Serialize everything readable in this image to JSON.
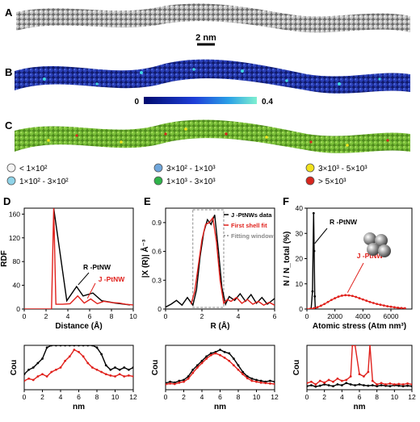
{
  "panels": {
    "A": "A",
    "B": "B",
    "C": "C",
    "D": "D",
    "E": "E",
    "F": "F"
  },
  "scale_bar": "2 nm",
  "colorbar": {
    "min": "0",
    "max": "0.4"
  },
  "legend_C": [
    {
      "label": "< 1×10²",
      "color": "#f4f4f4"
    },
    {
      "label": "1×10² - 3×10²",
      "color": "#8fd3e8"
    },
    {
      "label": "3×10² - 1×10³",
      "color": "#6fa6dc"
    },
    {
      "label": "1×10³ - 3×10³",
      "color": "#2fb34a"
    },
    {
      "label": "3×10³ - 5×10³",
      "color": "#f2e21c"
    },
    {
      "label": "> 5×10³",
      "color": "#d7261e"
    }
  ],
  "colors": {
    "black": "#000000",
    "red": "#e0201b",
    "grey": "#8a8a8a"
  },
  "chart_data": [
    {
      "id": "D",
      "type": "line",
      "xlabel": "Distance (Å)",
      "ylabel": "RDF",
      "xlim": [
        0,
        10
      ],
      "ylim": [
        0,
        170
      ],
      "xticks": [
        0,
        2,
        4,
        6,
        8,
        10
      ],
      "yticks": [
        0,
        40,
        80,
        120,
        160
      ],
      "annotations": [
        "R -PtNW",
        "J -PtNW"
      ],
      "series": [
        {
          "name": "R -PtNW",
          "color": "#000000",
          "x": [
            2.7,
            3.9,
            4.8,
            5.4,
            6.3,
            7.1,
            7.8,
            8.3,
            9.2,
            9.7
          ],
          "y": [
            175,
            14,
            38,
            22,
            27,
            14,
            12,
            10,
            8,
            7
          ]
        },
        {
          "name": "J -PtNW",
          "color": "#e0201b",
          "x": [
            0,
            2.5,
            2.7,
            2.9,
            3.5,
            4.2,
            4.9,
            5.5,
            6.1,
            6.7,
            7.3,
            8.0,
            8.7,
            9.3,
            10
          ],
          "y": [
            0,
            0,
            178,
            8,
            8,
            9,
            22,
            10,
            17,
            9,
            13,
            11,
            10,
            8,
            7
          ]
        }
      ]
    },
    {
      "id": "E",
      "type": "line",
      "xlabel": "R (Å)",
      "ylabel": "|X (R)| Å⁻³",
      "xlim": [
        0,
        6
      ],
      "ylim": [
        0,
        1.05
      ],
      "xticks": [
        0,
        2,
        4,
        6
      ],
      "yticks": [
        0.0,
        0.3,
        0.6,
        0.9
      ],
      "legend": [
        "J -PtNWs data",
        "First shell fit",
        "Fitting window"
      ],
      "series": [
        {
          "name": "J -PtNWs data",
          "color": "#000000",
          "x": [
            0,
            0.3,
            0.6,
            0.9,
            1.2,
            1.5,
            1.7,
            1.9,
            2.1,
            2.3,
            2.5,
            2.7,
            2.9,
            3.1,
            3.3,
            3.5,
            3.8,
            4.1,
            4.4,
            4.7,
            5.0,
            5.3,
            5.6,
            6.0
          ],
          "y": [
            0.02,
            0.05,
            0.09,
            0.04,
            0.12,
            0.04,
            0.2,
            0.55,
            0.8,
            0.93,
            0.88,
            0.98,
            0.62,
            0.22,
            0.05,
            0.13,
            0.09,
            0.16,
            0.08,
            0.15,
            0.06,
            0.12,
            0.05,
            0.11
          ]
        },
        {
          "name": "First shell fit",
          "color": "#e0201b",
          "x": [
            1.4,
            1.6,
            1.8,
            2.0,
            2.2,
            2.4,
            2.6,
            2.8,
            3.0,
            3.2,
            3.4,
            3.6,
            3.9,
            4.2,
            4.5,
            4.8,
            5.1,
            5.4,
            5.7,
            6.0
          ],
          "y": [
            0.05,
            0.18,
            0.45,
            0.72,
            0.88,
            0.9,
            0.95,
            0.7,
            0.3,
            0.06,
            0.1,
            0.08,
            0.12,
            0.06,
            0.1,
            0.05,
            0.08,
            0.04,
            0.07,
            0.04
          ]
        }
      ],
      "fitting_window": [
        1.5,
        3.2
      ]
    },
    {
      "id": "F",
      "type": "line",
      "xlabel": "Atomic stress (Atm nm³)",
      "ylabel": "N / N_total (%)",
      "xlim": [
        0,
        7500
      ],
      "ylim": [
        0,
        40
      ],
      "xticks": [
        0,
        2000,
        4000,
        6000
      ],
      "yticks": [
        0,
        10,
        20,
        30,
        40
      ],
      "annotations": [
        "R -PtNW",
        "J -PtNW"
      ],
      "series": [
        {
          "name": "R -PtNW",
          "color": "#000000",
          "x": [
            300,
            400,
            480,
            520,
            560,
            600
          ],
          "y": [
            0,
            7,
            38,
            23,
            5,
            0
          ]
        },
        {
          "name": "J -PtNW",
          "color": "#e0201b",
          "x": [
            0,
            250,
            500,
            750,
            1000,
            1250,
            1500,
            1750,
            2000,
            2250,
            2500,
            2750,
            3000,
            3250,
            3500,
            3750,
            4000,
            4250,
            4500,
            4750,
            5000,
            5250,
            5500,
            5750,
            6000,
            6250,
            6500,
            6750,
            7000
          ],
          "y": [
            0,
            0.1,
            0.3,
            0.7,
            1.3,
            2.0,
            2.8,
            3.6,
            4.3,
            4.9,
            5.3,
            5.5,
            5.4,
            5.2,
            4.8,
            4.3,
            3.8,
            3.3,
            2.8,
            2.4,
            2.0,
            1.7,
            1.4,
            1.1,
            0.9,
            0.7,
            0.5,
            0.4,
            0.3
          ]
        }
      ]
    },
    {
      "id": "D2",
      "type": "line",
      "xlabel": "nm",
      "ylabel": "Cou",
      "xlim": [
        0,
        12
      ],
      "ylim": [
        0,
        1
      ],
      "xticks": [
        0,
        2,
        4,
        6,
        8,
        10,
        12
      ],
      "series": [
        {
          "name": "",
          "color": "#000000",
          "x": [
            0,
            0.5,
            1,
            1.5,
            2,
            2.5,
            3,
            3.5,
            4,
            4.5,
            5,
            5.5,
            6,
            6.5,
            7,
            7.5,
            8,
            8.5,
            9,
            9.5,
            10,
            10.5,
            11,
            11.5,
            12
          ],
          "y": [
            0.35,
            0.45,
            0.5,
            0.6,
            0.7,
            0.95,
            1,
            1,
            1,
            1,
            1,
            1,
            1,
            1,
            1,
            1,
            0.95,
            0.8,
            0.55,
            0.45,
            0.5,
            0.45,
            0.5,
            0.45,
            0.5
          ]
        },
        {
          "name": "",
          "color": "#e0201b",
          "x": [
            0,
            0.5,
            1,
            1.5,
            2,
            2.5,
            3,
            3.5,
            4,
            4.5,
            5,
            5.5,
            6,
            6.5,
            7,
            7.5,
            8,
            8.5,
            9,
            9.5,
            10,
            10.5,
            11,
            11.5,
            12
          ],
          "y": [
            0.2,
            0.25,
            0.22,
            0.3,
            0.35,
            0.3,
            0.4,
            0.45,
            0.5,
            0.65,
            0.75,
            0.9,
            0.85,
            0.75,
            0.6,
            0.5,
            0.45,
            0.4,
            0.35,
            0.32,
            0.3,
            0.35,
            0.3,
            0.32,
            0.3
          ]
        }
      ]
    },
    {
      "id": "E2",
      "type": "line",
      "xlabel": "nm",
      "ylabel": "Cou",
      "xlim": [
        0,
        12
      ],
      "ylim": [
        0,
        1
      ],
      "xticks": [
        0,
        2,
        4,
        6,
        8,
        10,
        12
      ],
      "series": [
        {
          "name": "",
          "color": "#000000",
          "x": [
            0,
            0.5,
            1,
            1.5,
            2,
            2.5,
            3,
            3.5,
            4,
            4.5,
            5,
            5.5,
            6,
            6.5,
            7,
            7.5,
            8,
            8.5,
            9,
            9.5,
            10,
            10.5,
            11,
            11.5,
            12
          ],
          "y": [
            0.15,
            0.18,
            0.16,
            0.2,
            0.22,
            0.3,
            0.45,
            0.55,
            0.65,
            0.75,
            0.82,
            0.85,
            0.9,
            0.85,
            0.82,
            0.7,
            0.55,
            0.4,
            0.3,
            0.25,
            0.22,
            0.2,
            0.18,
            0.2,
            0.18
          ]
        },
        {
          "name": "",
          "color": "#e0201b",
          "x": [
            0,
            0.5,
            1,
            1.5,
            2,
            2.5,
            3,
            3.5,
            4,
            4.5,
            5,
            5.5,
            6,
            6.5,
            7,
            7.5,
            8,
            8.5,
            9,
            9.5,
            10,
            10.5,
            11,
            11.5,
            12
          ],
          "y": [
            0.12,
            0.14,
            0.13,
            0.16,
            0.18,
            0.25,
            0.38,
            0.5,
            0.6,
            0.7,
            0.78,
            0.82,
            0.78,
            0.72,
            0.65,
            0.55,
            0.45,
            0.35,
            0.26,
            0.2,
            0.18,
            0.16,
            0.15,
            0.14,
            0.13
          ]
        }
      ]
    },
    {
      "id": "F2",
      "type": "line",
      "xlabel": "nm",
      "ylabel": "Cou",
      "xlim": [
        0,
        12
      ],
      "ylim": [
        0,
        1
      ],
      "xticks": [
        0,
        2,
        4,
        6,
        8,
        10,
        12
      ],
      "series": [
        {
          "name": "",
          "color": "#000000",
          "x": [
            0,
            0.5,
            1,
            1.5,
            2,
            2.5,
            3,
            3.5,
            4,
            4.5,
            5,
            5.5,
            6,
            6.5,
            7,
            7.5,
            8,
            8.5,
            9,
            9.5,
            10,
            10.5,
            11,
            11.5,
            12
          ],
          "y": [
            0.08,
            0.1,
            0.07,
            0.09,
            0.12,
            0.1,
            0.08,
            0.12,
            0.1,
            0.15,
            0.12,
            0.1,
            0.12,
            0.1,
            0.09,
            0.1,
            0.08,
            0.1,
            0.09,
            0.08,
            0.1,
            0.09,
            0.08,
            0.09,
            0.08
          ]
        },
        {
          "name": "",
          "color": "#e0201b",
          "x": [
            0,
            0.5,
            1,
            1.5,
            2,
            2.5,
            3,
            3.5,
            4,
            4.5,
            5,
            5.2,
            5.5,
            6,
            6.5,
            7,
            7.2,
            7.5,
            8,
            8.5,
            9,
            9.5,
            10,
            10.5,
            11,
            11.5,
            12
          ],
          "y": [
            0.15,
            0.18,
            0.12,
            0.2,
            0.16,
            0.22,
            0.18,
            0.25,
            0.2,
            0.22,
            0.3,
            1,
            1,
            0.35,
            0.3,
            0.4,
            1,
            0.2,
            0.12,
            0.15,
            0.12,
            0.14,
            0.12,
            0.13,
            0.12,
            0.14,
            0.12
          ]
        }
      ]
    }
  ]
}
